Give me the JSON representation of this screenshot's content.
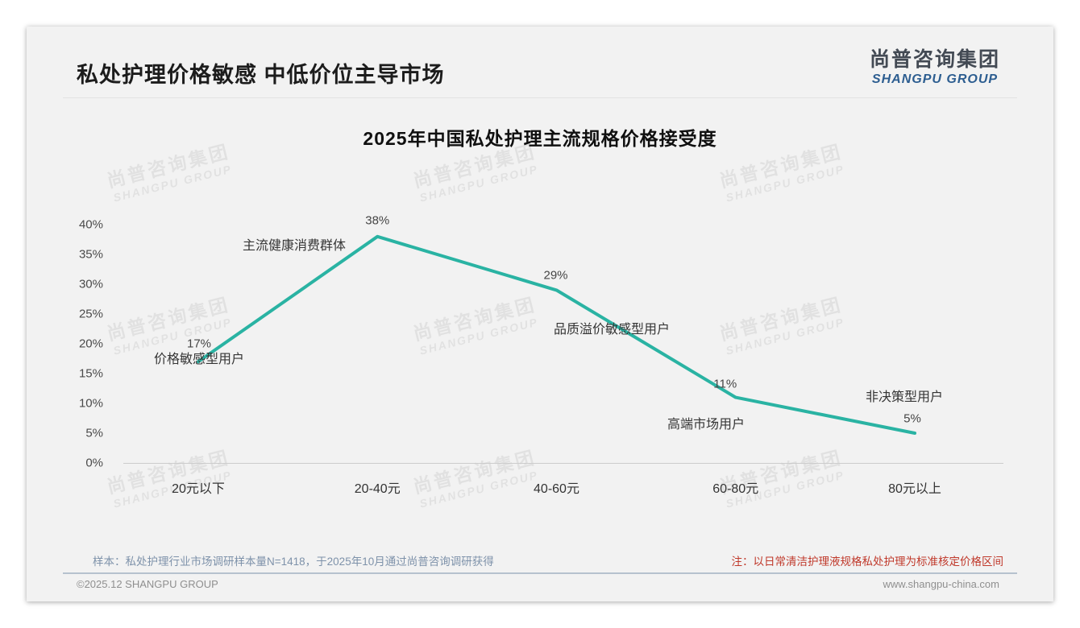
{
  "page": {
    "title": "私处护理价格敏感 中低价位主导市场",
    "logo": {
      "cn": "尚普咨询集团",
      "en": "SHANGPU GROUP"
    }
  },
  "watermark": {
    "line1": "尚普咨询集团",
    "line2": "SHANGPU GROUP"
  },
  "chart_data": {
    "type": "line",
    "title": "2025年中国私处护理主流规格价格接受度",
    "categories": [
      "20元以下",
      "20-40元",
      "40-60元",
      "60-80元",
      "80元以上"
    ],
    "values": [
      17,
      38,
      29,
      11,
      5
    ],
    "point_labels": [
      "17%",
      "38%",
      "29%",
      "11%",
      "5%"
    ],
    "yticks": [
      "40%",
      "35%",
      "30%",
      "25%",
      "20%",
      "15%",
      "10%",
      "5%",
      "0%"
    ],
    "ylim": [
      0,
      40
    ],
    "xlabel": "",
    "ylabel": "",
    "grid": false,
    "legend": "none",
    "line_color": "#2ab3a3",
    "annotations": [
      {
        "text": "价格敏感型用户"
      },
      {
        "text": "主流健康消费群体"
      },
      {
        "text": "品质溢价敏感型用户"
      },
      {
        "text": "高端市场用户"
      },
      {
        "text": "非决策型用户"
      }
    ]
  },
  "footnotes": {
    "sample": "样本：私处护理行业市场调研样本量N=1418，于2025年10月通过尚普咨询调研获得",
    "note": "注：以日常清洁护理液规格私处护理为标准核定价格区间"
  },
  "footer": {
    "copyright": "©2025.12 SHANGPU GROUP",
    "website": "www.shangpu-china.com"
  }
}
